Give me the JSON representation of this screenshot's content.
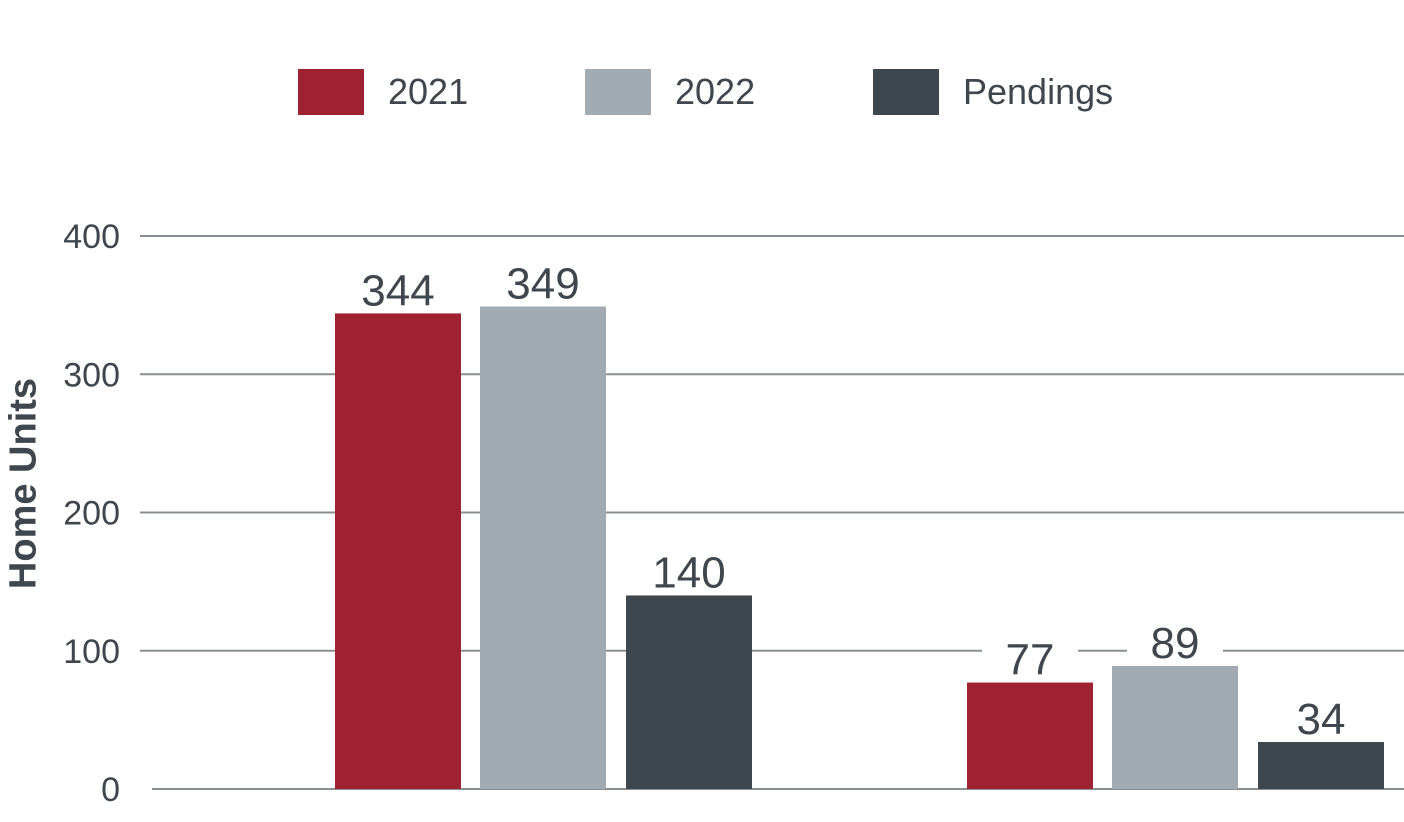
{
  "chart_data": {
    "type": "bar",
    "title": "",
    "categories": [
      "",
      ""
    ],
    "series": [
      {
        "name": "2021",
        "color": "#9e2231",
        "values": [
          344,
          77
        ]
      },
      {
        "name": "2022",
        "color": "#a2abb1",
        "values": [
          349,
          89
        ]
      },
      {
        "name": "Pendings",
        "color": "#3f474e",
        "values": [
          140,
          34
        ]
      }
    ],
    "ylabel": "Home Units",
    "xlabel": "",
    "ylim": [
      0,
      400
    ],
    "yticks": [
      "0",
      "100",
      "200",
      "300",
      "400"
    ],
    "grid": true,
    "legend": "top-center"
  }
}
